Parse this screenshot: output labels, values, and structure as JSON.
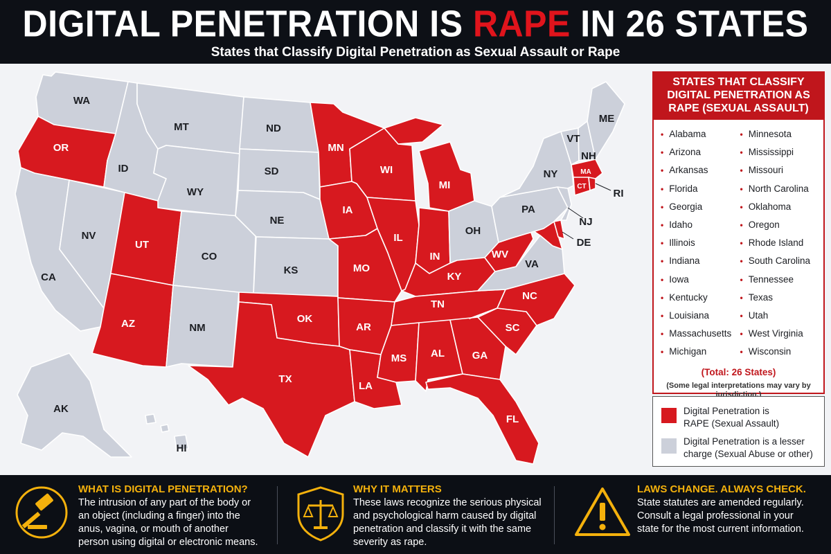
{
  "header": {
    "title_prefix": "DIGITAL PENETRATION IS ",
    "title_highlight": "RAPE",
    "title_suffix": " IN 26 STATES",
    "subtitle": "States that Classify Digital Penetration as Sexual Assault or Rape"
  },
  "colors": {
    "red": "#d7191f",
    "gray": "#ccd0da",
    "background": "#f2f3f6",
    "accent": "#f4b10c"
  },
  "map": {
    "labels": {
      "WA": "WA",
      "OR": "OR",
      "CA": "CA",
      "NV": "NV",
      "ID": "ID",
      "MT": "MT",
      "WY": "WY",
      "UT": "UT",
      "AZ": "AZ",
      "CO": "CO",
      "NM": "NM",
      "ND": "ND",
      "SD": "SD",
      "NE": "NE",
      "KS": "KS",
      "OK": "OK",
      "TX": "TX",
      "MN": "MN",
      "IA": "IA",
      "MO": "MO",
      "AR": "AR",
      "LA": "LA",
      "WI": "WI",
      "IL": "IL",
      "MI": "MI",
      "IN": "IN",
      "OH": "OH",
      "KY": "KY",
      "TN": "TN",
      "MS": "MS",
      "AL": "AL",
      "GA": "GA",
      "FL": "FL",
      "SC": "SC",
      "NC": "NC",
      "VA": "VA",
      "WV": "WV",
      "PA": "PA",
      "NY": "NY",
      "VT": "VT",
      "NH": "NH",
      "ME": "ME",
      "MA": "MA",
      "CT": "CT",
      "RI": "RI",
      "NJ": "NJ",
      "DE": "DE",
      "AK": "AK",
      "HI": "HI"
    }
  },
  "panel": {
    "header": "STATES THAT CLASSIFY DIGITAL PENETRATION AS RAPE (SEXUAL ASSAULT)",
    "col1": [
      "Alabama",
      "Arizona",
      "Arkansas",
      "Florida",
      "Georgia",
      "Idaho",
      "Illinois",
      "Indiana",
      "Iowa",
      "Kentucky",
      "Louisiana",
      "Massachusetts",
      "Michigan"
    ],
    "col2": [
      "Minnesota",
      "Mississippi",
      "Missouri",
      "North Carolina",
      "Oklahoma",
      "Oregon",
      "Rhode Island",
      "South Carolina",
      "Tennessee",
      "Texas",
      "Utah",
      "West Virginia",
      "Wisconsin"
    ],
    "total": "(Total: 26 States)",
    "note": "(Some legal interpretations may vary by jurisdiction.)"
  },
  "legend": {
    "red_label_1": "Digital Penetration is",
    "red_label_2": "RAPE (Sexual Assault)",
    "gray_label_1": "Digital Penetration is a lesser",
    "gray_label_2": "charge (Sexual Abuse or other)"
  },
  "footer": {
    "col1": {
      "heading": "WHAT IS DIGITAL PENETRATION?",
      "lines": [
        "The intrusion of any part of the body or",
        "an object (including a finger) into the",
        "anus, vagina, or mouth of another",
        "person using digital or electronic means."
      ]
    },
    "col2": {
      "heading": "WHY IT MATTERS",
      "lines": [
        "These laws recognize the serious physical",
        "and psychological harm caused by digital",
        "penetration and classify it with the same",
        "severity as rape."
      ]
    },
    "col3": {
      "heading": "LAWS CHANGE. ALWAYS CHECK.",
      "lines": [
        "State statutes are amended regularly.",
        "Consult a legal professional in your",
        "state for the most current information."
      ]
    }
  }
}
